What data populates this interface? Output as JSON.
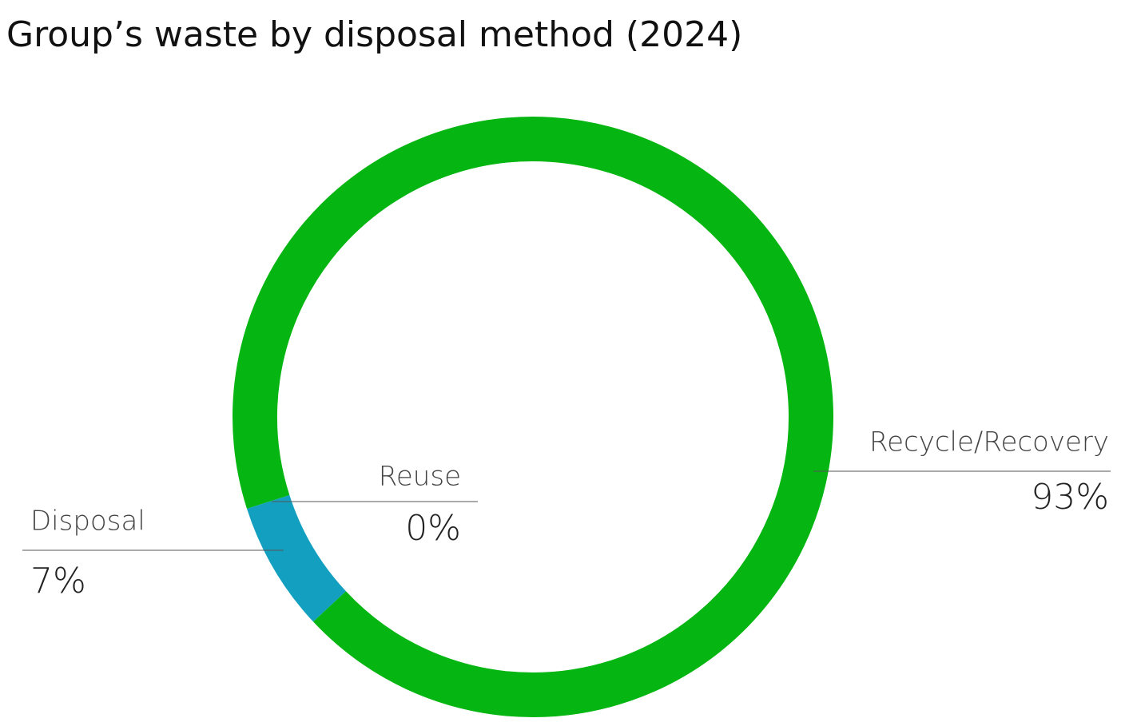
{
  "chart_data": {
    "type": "donut",
    "title": "Group’s waste by disposal method (2024)",
    "categories": [
      "Disposal",
      "Reuse",
      "Recycle/Recovery"
    ],
    "values": [
      7,
      0,
      93
    ],
    "value_labels": [
      "7%",
      "0%",
      "93%"
    ],
    "colors": [
      "#139fc0",
      "#0c8fb0",
      "#05b511"
    ]
  }
}
